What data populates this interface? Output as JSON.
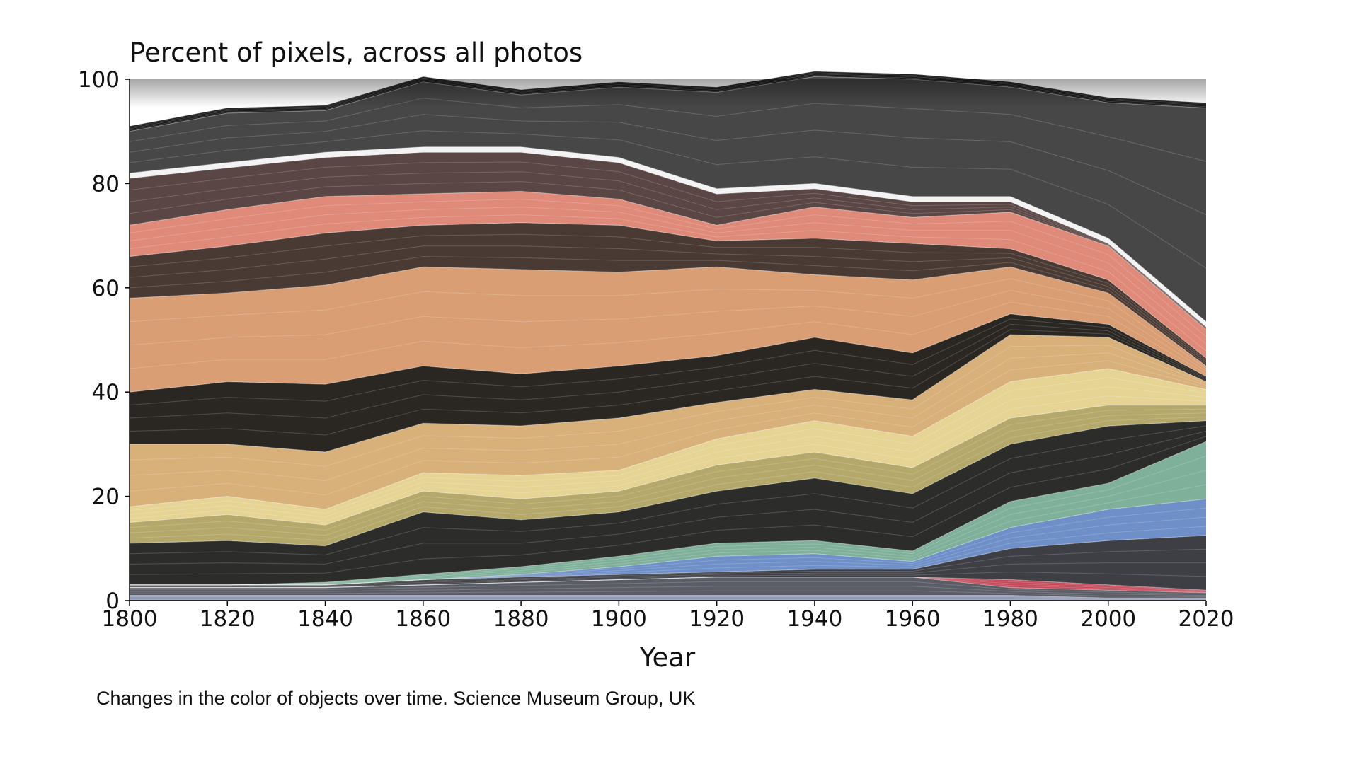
{
  "chart_data": {
    "type": "area",
    "title": "Percent of pixels, across all photos",
    "xlabel": "Year",
    "ylabel": "",
    "xlim": [
      1800,
      2020
    ],
    "ylim": [
      0,
      100
    ],
    "x": [
      1800,
      1820,
      1840,
      1860,
      1880,
      1900,
      1920,
      1940,
      1960,
      1980,
      2000,
      2020
    ],
    "x_ticks": [
      "1800",
      "1820",
      "1840",
      "1860",
      "1880",
      "1900",
      "1920",
      "1940",
      "1960",
      "1980",
      "2000",
      "2020"
    ],
    "y_ticks": [
      "0",
      "20",
      "40",
      "60",
      "80",
      "100"
    ],
    "grid": false,
    "legend": "none",
    "bands": [
      {
        "color": "#9098b4",
        "values": [
          1,
          1,
          1,
          1,
          1,
          1,
          1,
          1,
          1,
          1,
          0.5,
          0.5
        ]
      },
      {
        "color": "#5a5c66",
        "values": [
          1.5,
          1.5,
          1.5,
          2,
          2.5,
          3,
          3.5,
          3.5,
          3.5,
          1.5,
          1.5,
          1
        ]
      },
      {
        "color": "#c44a5a",
        "values": [
          0,
          0,
          0,
          0,
          0,
          0,
          0,
          0,
          0,
          1.5,
          1,
          0.5
        ]
      },
      {
        "color": "#3e3f44",
        "values": [
          0.5,
          0.5,
          0.5,
          1,
          1,
          1,
          1,
          1.5,
          1.5,
          6,
          8.5,
          10.5
        ]
      },
      {
        "color": "#6e8fc8",
        "values": [
          0,
          0,
          0,
          0,
          0.5,
          1.5,
          3,
          3,
          1.5,
          4,
          6,
          7
        ]
      },
      {
        "color": "#7fb09a",
        "values": [
          0,
          0,
          0.5,
          1,
          1.5,
          2,
          2.5,
          2.5,
          2,
          5,
          5,
          11
        ]
      },
      {
        "color": "#2c2d2a",
        "values": [
          8,
          8.5,
          7,
          12,
          9,
          8.5,
          10,
          12,
          11,
          11,
          11,
          4
        ]
      },
      {
        "color": "#b5a86b",
        "values": [
          4,
          5,
          4,
          4,
          4,
          4,
          5,
          5,
          5,
          5,
          4,
          3
        ]
      },
      {
        "color": "#e6d495",
        "values": [
          3,
          3.5,
          3,
          3.5,
          4.5,
          4,
          5,
          6,
          6,
          7,
          7,
          3
        ]
      },
      {
        "color": "#d8b07a",
        "values": [
          12,
          10,
          11,
          9.5,
          9.5,
          10,
          7,
          6,
          7,
          9,
          6,
          1.5
        ]
      },
      {
        "color": "#2a2622",
        "values": [
          10,
          12,
          13,
          11,
          10,
          10,
          9,
          10,
          9,
          4,
          2.5,
          1
        ]
      },
      {
        "color": "#d99e74",
        "values": [
          18,
          17,
          19,
          19,
          20,
          18,
          17,
          12,
          14,
          9,
          6,
          2
        ]
      },
      {
        "color": "#4a3a34",
        "values": [
          8,
          9,
          10,
          8,
          9,
          9,
          5,
          7,
          7,
          3.5,
          2.5,
          1.5
        ]
      },
      {
        "color": "#e08a7a",
        "values": [
          6,
          7,
          7,
          6,
          6,
          5,
          3,
          6,
          5,
          7,
          6.5,
          5.5
        ]
      },
      {
        "color": "#5a4644",
        "values": [
          9,
          8,
          7.5,
          8,
          7.5,
          7,
          6,
          3.5,
          3,
          2,
          0.5,
          0.5
        ]
      },
      {
        "color": "#f2f2f2",
        "values": [
          1,
          1,
          1,
          1,
          1,
          1,
          1,
          1,
          1,
          1,
          1,
          1
        ]
      },
      {
        "color": "#474747",
        "values": [
          8,
          9.5,
          8,
          12.5,
          10,
          13.5,
          18.5,
          20.5,
          22.5,
          21,
          26,
          41
        ]
      },
      {
        "color": "#141414",
        "values": [
          1,
          1,
          1,
          1,
          1,
          1,
          1,
          1,
          1,
          1,
          1,
          1
        ]
      }
    ]
  },
  "caption": "Changes in the color of objects over time. Science Museum Group, UK"
}
